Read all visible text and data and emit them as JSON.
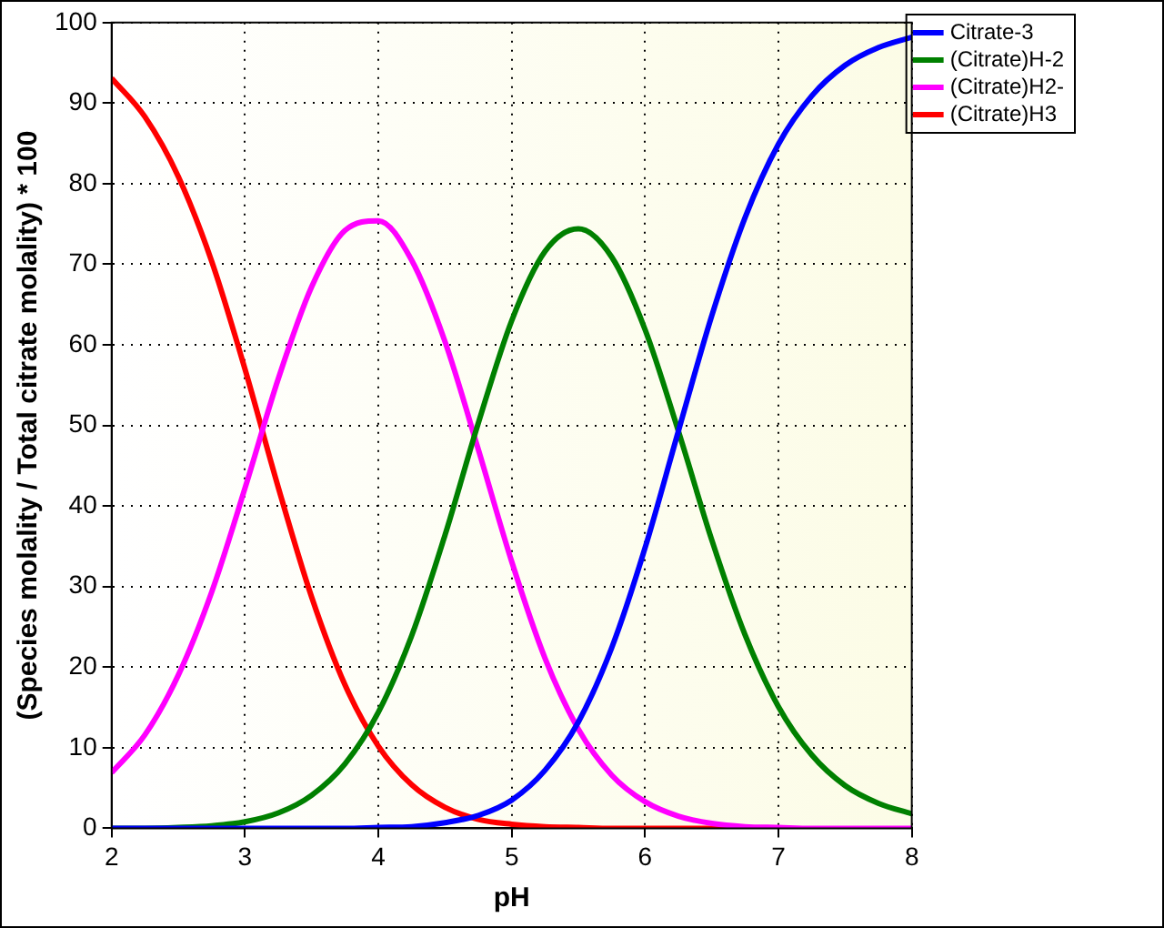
{
  "chart_data": {
    "type": "line",
    "xlabel": "pH",
    "ylabel": "(Species molality / Total citrate molality) * 100",
    "x": [
      2,
      2.25,
      2.5,
      2.75,
      3,
      3.25,
      3.5,
      3.75,
      4,
      4.25,
      4.5,
      4.75,
      5,
      5.25,
      5.5,
      5.75,
      6,
      6.25,
      6.5,
      6.75,
      7,
      7.25,
      7.5,
      7.75,
      8
    ],
    "series": [
      {
        "name": "Citrate-3",
        "color": "#0000ff",
        "values": [
          0,
          0,
          0,
          0,
          0,
          0,
          0,
          0,
          0.1,
          0.2,
          0.7,
          1.6,
          3.5,
          7.2,
          13.2,
          22.4,
          34.8,
          49.3,
          63.6,
          75.8,
          84.9,
          90.9,
          94.7,
          96.9,
          98.2
        ]
      },
      {
        "name": "(Citrate)H-2",
        "color": "#008000",
        "values": [
          0,
          0,
          0.1,
          0.3,
          0.8,
          1.9,
          4.1,
          8.0,
          14.4,
          23.9,
          36.4,
          50.3,
          63.0,
          71.6,
          74.4,
          70.9,
          61.9,
          49.3,
          35.8,
          24.0,
          15.1,
          9.1,
          5.3,
          3.1,
          1.8
        ]
      },
      {
        "name": "(Citrate)H2-",
        "color": "#ff00ff",
        "values": [
          6.9,
          11.6,
          19.0,
          29.3,
          42.2,
          55.8,
          67.2,
          74.2,
          75.4,
          70.5,
          60.4,
          47.0,
          33.1,
          21.1,
          12.3,
          6.6,
          3.3,
          1.5,
          0.6,
          0.2,
          0.1,
          0,
          0,
          0,
          0
        ]
      },
      {
        "name": "(Citrate)H3",
        "color": "#ff0000",
        "values": [
          93.1,
          88.3,
          80.9,
          70.4,
          57.0,
          42.3,
          28.7,
          17.8,
          10.2,
          5.4,
          2.6,
          1.1,
          0.5,
          0.2,
          0.1,
          0,
          0,
          0,
          0,
          0,
          null,
          null,
          null,
          null,
          null
        ]
      }
    ],
    "xlim": [
      2,
      8
    ],
    "xticks": [
      2,
      3,
      4,
      5,
      6,
      7,
      8
    ],
    "ylim": [
      0,
      100
    ],
    "yticks": [
      0,
      10,
      20,
      30,
      40,
      50,
      60,
      70,
      80,
      90,
      100
    ],
    "grid": true,
    "legend": "right",
    "marker": "none",
    "line_style": "solid"
  }
}
